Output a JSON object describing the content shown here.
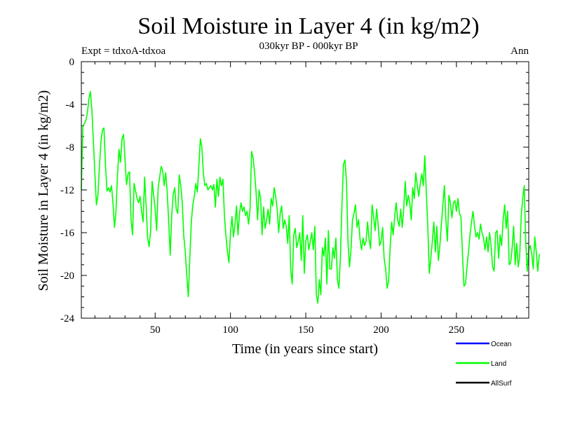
{
  "chart_data": {
    "type": "line",
    "title": "Soil Moisture in Layer 4 (in kg/m2)",
    "subtitle": "030kyr BP - 000kyr BP",
    "left_note": "Expt = tdxoA-tdxoa",
    "right_note": "Ann",
    "xlabel": "Time (in years since start)",
    "ylabel": "Soil Moisture in Layer 4 (in kg/m2)",
    "xlim": [
      1,
      298
    ],
    "ylim": [
      -24,
      0
    ],
    "x_ticks": [
      50,
      100,
      150,
      200,
      250
    ],
    "y_ticks": [
      0,
      -4,
      -8,
      -12,
      -16,
      -20,
      -24
    ],
    "grid": false,
    "legend_position": "bottom-right",
    "legend": [
      {
        "name": "Ocean",
        "color": "#0000ff"
      },
      {
        "name": "Land",
        "color": "#00ff00"
      },
      {
        "name": "AllSurf",
        "color": "#000000"
      }
    ],
    "series": [
      {
        "name": "Land",
        "color": "#00ff00",
        "x_start": 1,
        "x_step": 1,
        "values": [
          -12.0,
          -6.0,
          -5.8,
          -5.5,
          -4.8,
          -3.5,
          -2.8,
          -4.5,
          -7.5,
          -10.5,
          -13.4,
          -12.5,
          -9.8,
          -7.5,
          -6.4,
          -6.2,
          -9.6,
          -12.1,
          -11.8,
          -12.2,
          -11.6,
          -13.2,
          -15.5,
          -14.0,
          -10.6,
          -8.2,
          -9.4,
          -7.2,
          -6.8,
          -9.2,
          -11.5,
          -10.5,
          -10.3,
          -14.8,
          -16.2,
          -11.4,
          -12.1,
          -12.8,
          -13.2,
          -12.6,
          -14.0,
          -15.0,
          -10.8,
          -13.5,
          -16.5,
          -17.3,
          -15.8,
          -11.2,
          -12.5,
          -13.8,
          -15.8,
          -11.8,
          -10.8,
          -9.8,
          -10.2,
          -11.6,
          -10.4,
          -12.2,
          -15.0,
          -18.1,
          -14.4,
          -12.4,
          -11.8,
          -13.8,
          -14.2,
          -10.6,
          -11.6,
          -13.2,
          -16.3,
          -17.8,
          -20.0,
          -22.0,
          -18.4,
          -15.0,
          -13.4,
          -12.6,
          -11.4,
          -12.2,
          -9.8,
          -7.2,
          -8.0,
          -10.4,
          -11.6,
          -11.4,
          -12.0,
          -11.8,
          -11.6,
          -12.0,
          -11.5,
          -13.6,
          -11.0,
          -12.6,
          -10.8,
          -11.6,
          -11.0,
          -14.5,
          -16.3,
          -17.8,
          -18.8,
          -16.0,
          -14.5,
          -16.4,
          -15.2,
          -13.5,
          -16.2,
          -14.2,
          -13.2,
          -14.0,
          -13.6,
          -14.4,
          -14.0,
          -15.2,
          -13.8,
          -8.4,
          -9.0,
          -10.4,
          -12.2,
          -14.8,
          -12.0,
          -12.8,
          -16.2,
          -13.6,
          -15.6,
          -14.8,
          -13.8,
          -15.2,
          -12.8,
          -13.5,
          -11.8,
          -12.6,
          -13.8,
          -16.0,
          -14.2,
          -13.5,
          -15.6,
          -14.8,
          -15.4,
          -17.0,
          -14.4,
          -19.5,
          -20.8,
          -16.2,
          -15.6,
          -17.4,
          -16.8,
          -16.0,
          -18.6,
          -14.4,
          -19.8,
          -16.8,
          -16.2,
          -17.6,
          -16.8,
          -16.0,
          -17.6,
          -15.4,
          -21.8,
          -22.6,
          -20.4,
          -21.8,
          -17.4,
          -18.2,
          -16.5,
          -20.8,
          -15.8,
          -19.4,
          -19.4,
          -17.4,
          -18.4,
          -16.5,
          -20.4,
          -21.2,
          -18.2,
          -13.4,
          -9.6,
          -9.2,
          -11.2,
          -16.8,
          -19.2,
          -17.6,
          -14.8,
          -14.2,
          -13.4,
          -15.5,
          -14.8,
          -16.6,
          -17.6,
          -16.5,
          -17.2,
          -16.8,
          -15.0,
          -16.6,
          -17.5,
          -13.4,
          -14.5,
          -15.8,
          -13.8,
          -15.2,
          -17.2,
          -16.8,
          -15.5,
          -18.4,
          -19.4,
          -21.2,
          -20.5,
          -17.4,
          -15.0,
          -16.2,
          -14.5,
          -13.2,
          -14.8,
          -15.4,
          -13.8,
          -15.5,
          -13.8,
          -11.2,
          -13.5,
          -12.5,
          -13.2,
          -14.8,
          -11.8,
          -12.8,
          -10.4,
          -11.6,
          -12.6,
          -11.4,
          -10.5,
          -11.6,
          -8.8,
          -12.2,
          -15.5,
          -19.8,
          -18.4,
          -16.8,
          -15.0,
          -17.8,
          -15.4,
          -18.6,
          -17.2,
          -15.2,
          -13.4,
          -11.6,
          -14.8,
          -16.8,
          -12.5,
          -13.2,
          -14.6,
          -13.2,
          -13.0,
          -14.0,
          -12.8,
          -14.2,
          -14.5,
          -18.0,
          -21.0,
          -20.8,
          -19.2,
          -17.8,
          -16.2,
          -15.0,
          -14.0,
          -15.4,
          -16.4,
          -16.0,
          -16.6,
          -15.2,
          -16.0,
          -16.5,
          -17.6,
          -16.4,
          -17.8,
          -16.0,
          -17.2,
          -19.2,
          -19.6,
          -16.0,
          -15.8,
          -18.4,
          -16.2,
          -17.2,
          -14.8,
          -13.4,
          -15.6,
          -14.0,
          -19.0,
          -18.8,
          -17.4,
          -15.4,
          -19.0,
          -17.0,
          -19.2,
          -18.2,
          -14.4,
          -12.8,
          -11.6,
          -16.8,
          -19.6,
          -17.6,
          -17.2,
          -18.0,
          -19.4,
          -16.4,
          -17.8,
          -19.6,
          -18.0
        ]
      }
    ]
  }
}
